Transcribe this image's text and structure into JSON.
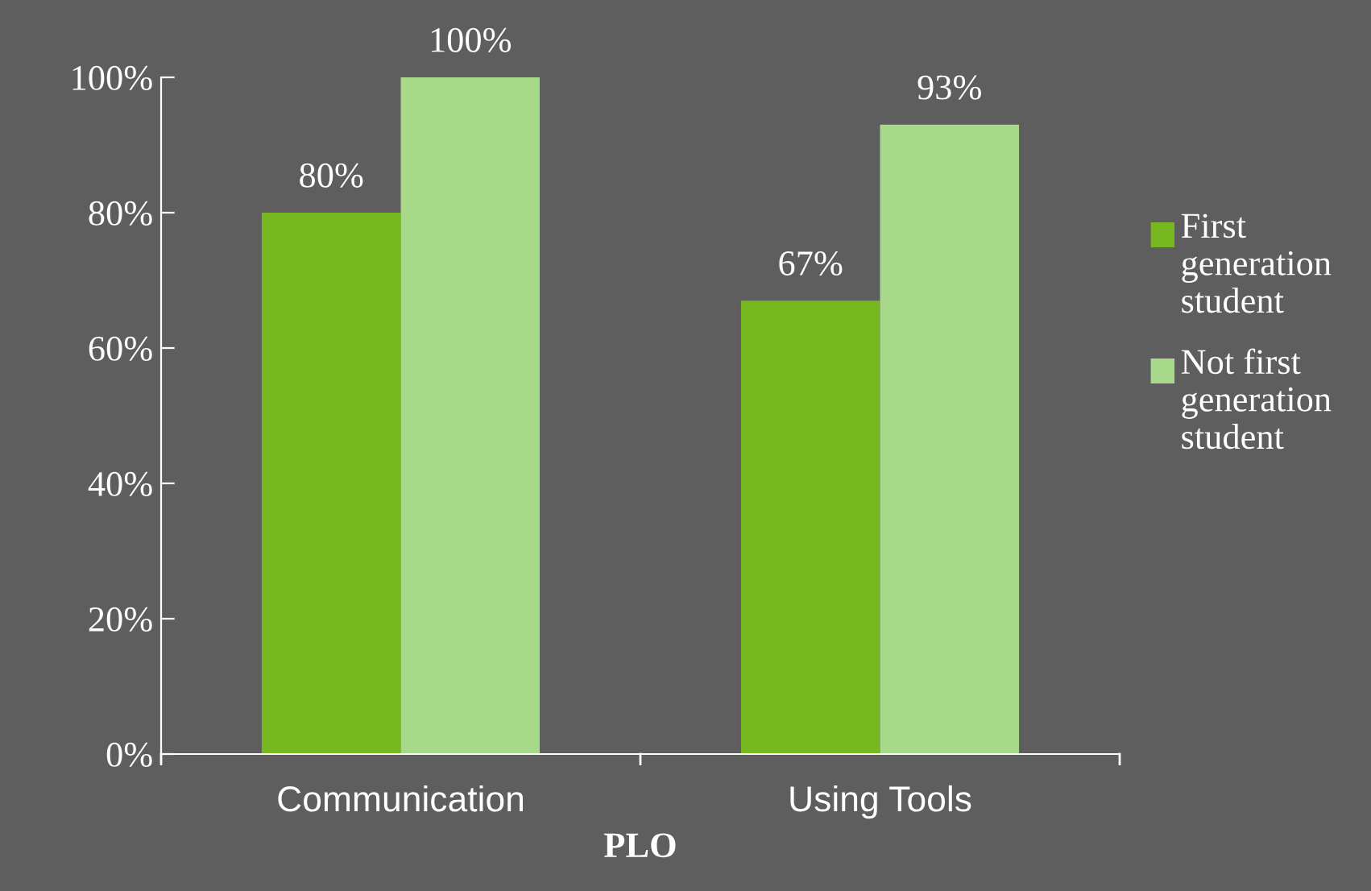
{
  "chart_data": {
    "type": "bar",
    "xlabel": "PLO",
    "categories": [
      "Communication",
      "Using Tools"
    ],
    "series": [
      {
        "name": "First generation student",
        "color": "#77b71f",
        "values": [
          80,
          67
        ],
        "value_labels": [
          "80%",
          "67%"
        ]
      },
      {
        "name": "Not first generation student",
        "color": "#a8d88a",
        "values": [
          100,
          93
        ],
        "value_labels": [
          "100%",
          "93%"
        ]
      }
    ],
    "ylim": [
      0,
      100
    ],
    "yticks": [
      {
        "value": 0,
        "label": "0%"
      },
      {
        "value": 20,
        "label": "20%"
      },
      {
        "value": 40,
        "label": "40%"
      },
      {
        "value": 60,
        "label": "60%"
      },
      {
        "value": 80,
        "label": "80%"
      },
      {
        "value": 100,
        "label": "100%"
      }
    ],
    "grid": false,
    "legend": "right"
  }
}
